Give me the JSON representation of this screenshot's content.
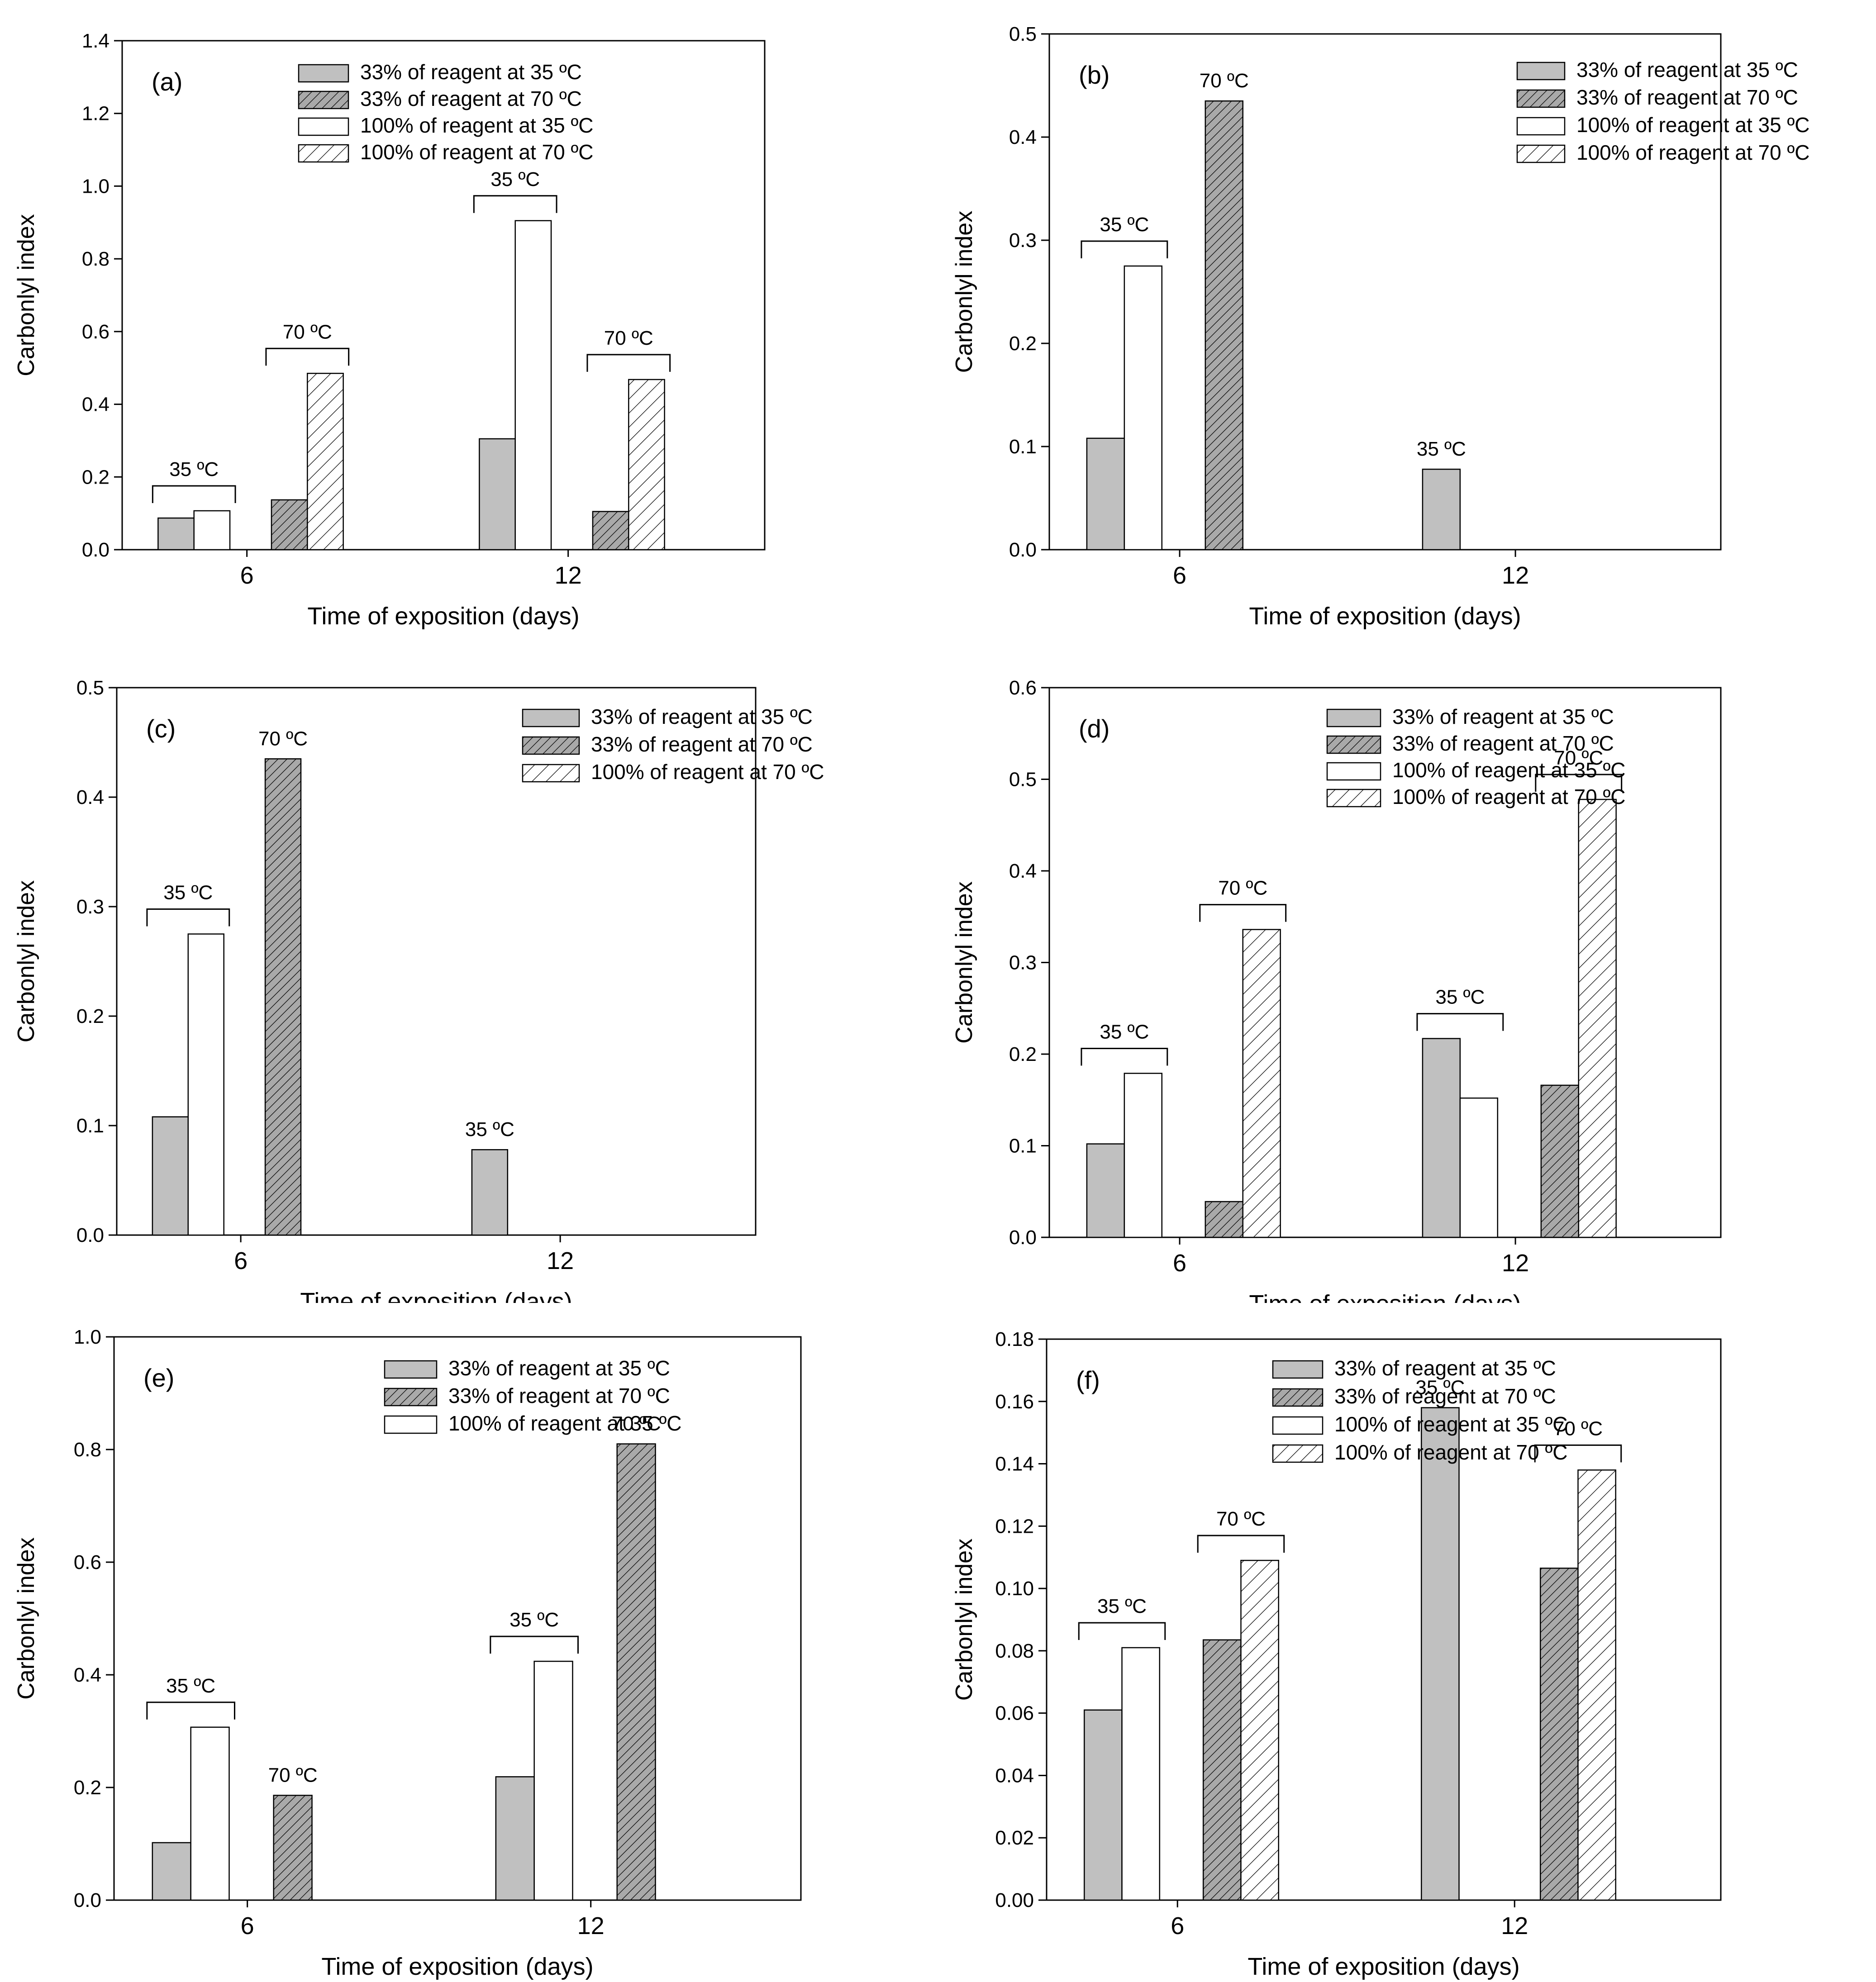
{
  "colors": {
    "solid_fill": "#c0c0c0",
    "hatch_fill_bg": "#a9a9a9",
    "open_fill": "#ffffff",
    "stroke": "#000000"
  },
  "chart_data": [
    {
      "type": "bar",
      "panel_label": "(a)",
      "xlabel": "Time of exposition (days)",
      "ylabel": "Carbonlyl index",
      "ylim": [
        0,
        1.4
      ],
      "yticks": [
        "0.0",
        "0.2",
        "0.4",
        "0.6",
        "0.8",
        "1.0",
        "1.2",
        "1.4"
      ],
      "categories": [
        "6",
        "12"
      ],
      "legend_placement": "top-center",
      "series": [
        {
          "name": "33% of reagent at 35 ºC",
          "style": "solid",
          "values": [
            0.087,
            0.305
          ]
        },
        {
          "name": "33% of reagent at 70 ºC",
          "style": "hatch-dense",
          "values": [
            0.137,
            0.105
          ]
        },
        {
          "name": "100% of reagent at 35 ºC",
          "style": "open",
          "values": [
            0.107,
            0.905
          ]
        },
        {
          "name": "100% of reagent at 70 ºC",
          "style": "hatch-sparse",
          "values": [
            0.485,
            0.468
          ]
        }
      ],
      "annotations": [
        {
          "text": "35 ºC",
          "category": 0,
          "group": "35"
        },
        {
          "text": "70 ºC",
          "category": 0,
          "group": "70"
        },
        {
          "text": "35 ºC",
          "category": 1,
          "group": "35"
        },
        {
          "text": "70 ºC",
          "category": 1,
          "group": "70"
        }
      ]
    },
    {
      "type": "bar",
      "panel_label": "(b)",
      "xlabel": "Time of exposition (days)",
      "ylabel": "Carbonlyl index",
      "ylim": [
        0,
        0.5
      ],
      "yticks": [
        "0.0",
        "0.1",
        "0.2",
        "0.3",
        "0.4",
        "0.5"
      ],
      "categories": [
        "6",
        "12"
      ],
      "legend_placement": "top-right",
      "series": [
        {
          "name": "33% of reagent at 35 ºC",
          "style": "solid",
          "values": [
            0.108,
            0.078
          ]
        },
        {
          "name": "33% of reagent at 70 ºC",
          "style": "hatch-dense",
          "values": [
            0.435,
            null
          ]
        },
        {
          "name": "100% of reagent at 35 ºC",
          "style": "open",
          "values": [
            0.275,
            null
          ]
        },
        {
          "name": "100% of reagent at 70 ºC",
          "style": "hatch-sparse",
          "values": [
            null,
            null
          ]
        }
      ],
      "annotations": [
        {
          "text": "35 ºC",
          "category": 0,
          "group": "35"
        },
        {
          "text": "70 ºC",
          "category": 0,
          "group": "70"
        },
        {
          "text": "35 ºC",
          "category": 1,
          "group": "35"
        }
      ]
    },
    {
      "type": "bar",
      "panel_label": "(c)",
      "xlabel": "Time of exposition (days)",
      "ylabel": "Carbonlyl index",
      "ylim": [
        0,
        0.5
      ],
      "yticks": [
        "0.0",
        "0.1",
        "0.2",
        "0.3",
        "0.4",
        "0.5"
      ],
      "categories": [
        "6",
        "12"
      ],
      "legend_placement": "top-right",
      "series": [
        {
          "name": "33% of reagent at 35 ºC",
          "style": "solid",
          "values": [
            0.108,
            0.078
          ]
        },
        {
          "name": "33% of reagent at 70 ºC",
          "style": "hatch-dense",
          "values": [
            0.435,
            null
          ]
        },
        {
          "name": "100% of reagent at 70 ºC",
          "style": "hatch-sparse",
          "values": [
            null,
            null
          ]
        }
      ],
      "unlisted_series": [
        {
          "style": "open",
          "values": [
            0.275,
            null
          ]
        }
      ],
      "annotations": [
        {
          "text": "35 ºC",
          "category": 0,
          "group": "35"
        },
        {
          "text": "70 ºC",
          "category": 0,
          "group": "70"
        },
        {
          "text": "35 ºC",
          "category": 1,
          "group": "35"
        }
      ]
    },
    {
      "type": "bar",
      "panel_label": "(d)",
      "xlabel": "Time of exposition (days)",
      "ylabel": "Carbonlyl index",
      "ylim": [
        0,
        0.6
      ],
      "yticks": [
        "0.0",
        "0.1",
        "0.2",
        "0.3",
        "0.4",
        "0.5",
        "0.6"
      ],
      "categories": [
        "6",
        "12"
      ],
      "legend_placement": "top-center",
      "series": [
        {
          "name": "33% of reagent at 35 ºC",
          "style": "solid",
          "values": [
            0.102,
            0.217
          ]
        },
        {
          "name": "33% of reagent at 70 ºC",
          "style": "hatch-dense",
          "values": [
            0.039,
            0.166
          ]
        },
        {
          "name": "100% of reagent at 35 ºC",
          "style": "open",
          "values": [
            0.179,
            0.152
          ]
        },
        {
          "name": "100% of reagent at 70 ºC",
          "style": "hatch-sparse",
          "values": [
            0.336,
            0.478
          ]
        }
      ],
      "annotations": [
        {
          "text": "35 ºC",
          "category": 0,
          "group": "35"
        },
        {
          "text": "70 ºC",
          "category": 0,
          "group": "70"
        },
        {
          "text": "35 ºC",
          "category": 1,
          "group": "35"
        },
        {
          "text": "70 ºC",
          "category": 1,
          "group": "70"
        }
      ]
    },
    {
      "type": "bar",
      "panel_label": "(e)",
      "xlabel": "Time of exposition (days)",
      "ylabel": "Carbonlyl index",
      "ylim": [
        0,
        1.0
      ],
      "yticks": [
        "0.0",
        "0.2",
        "0.4",
        "0.6",
        "0.8",
        "1.0"
      ],
      "categories": [
        "6",
        "12"
      ],
      "legend_placement": "top-center",
      "series": [
        {
          "name": "33% of reagent at 35 ºC",
          "style": "solid",
          "values": [
            0.102,
            0.219
          ]
        },
        {
          "name": "33% of reagent at 70 ºC",
          "style": "hatch-dense",
          "values": [
            0.186,
            0.81
          ]
        },
        {
          "name": "100% of reagent at 35 ºC",
          "style": "open",
          "values": [
            0.307,
            0.424
          ]
        }
      ],
      "annotations": [
        {
          "text": "35 ºC",
          "category": 0,
          "group": "35"
        },
        {
          "text": "70 ºC",
          "category": 0,
          "group": "70"
        },
        {
          "text": "35 ºC",
          "category": 1,
          "group": "35"
        },
        {
          "text": "70 ºC",
          "category": 1,
          "group": "70"
        }
      ]
    },
    {
      "type": "bar",
      "panel_label": "(f)",
      "xlabel": "Time of exposition (days)",
      "ylabel": "Carbonlyl index",
      "ylim": [
        0,
        0.18
      ],
      "yticks": [
        "0.00",
        "0.02",
        "0.04",
        "0.06",
        "0.08",
        "0.10",
        "0.12",
        "0.14",
        "0.16",
        "0.18"
      ],
      "categories": [
        "6",
        "12"
      ],
      "legend_placement": "top-center",
      "series": [
        {
          "name": "33% of reagent at 35 ºC",
          "style": "solid",
          "values": [
            0.061,
            0.158
          ]
        },
        {
          "name": "33% of reagent at 70 ºC",
          "style": "hatch-dense",
          "values": [
            0.0835,
            0.1065
          ]
        },
        {
          "name": "100% of reagent at 35 ºC",
          "style": "open",
          "values": [
            0.081,
            null
          ]
        },
        {
          "name": "100% of reagent at 70 ºC",
          "style": "hatch-sparse",
          "values": [
            0.109,
            0.138
          ]
        }
      ],
      "annotations": [
        {
          "text": "35 ºC",
          "category": 0,
          "group": "35"
        },
        {
          "text": "70 ºC",
          "category": 0,
          "group": "70"
        },
        {
          "text": "35 ºC",
          "category": 1,
          "group": "35"
        },
        {
          "text": "70 ºC",
          "category": 1,
          "group": "70"
        }
      ]
    }
  ]
}
